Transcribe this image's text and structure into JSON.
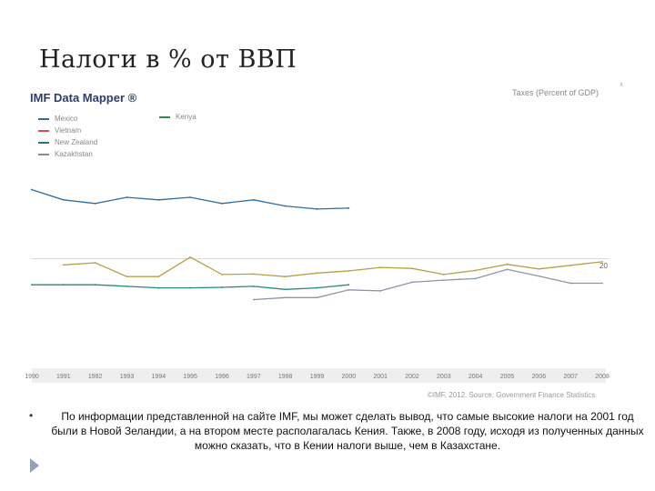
{
  "slide": {
    "title": "Налоги в % от ВВП",
    "bullet_text": "По информации представленной на сайте IMF, мы может сделать вывод, что самые высокие налоги на 2001 год были в Новой Зеландии, а на втором месте располагалась Кения. Также, в 2008 году, исходя из полученных данных можно сказать, что в Кении налоги выше, чем в Казахстане."
  },
  "chart_header": {
    "logo": "IMF Data Mapper ®",
    "title": "Taxes (Percent of GDP)",
    "source": "©IMF, 2012. Source: Government Finance Statistics",
    "y_marker_label": "20",
    "top_tick": "x"
  },
  "colors": {
    "mexico": "#2a6fa8",
    "vietnam": "#d9534f",
    "new_zealand": "#2f6f9f",
    "kazakhstan": "#7a8fa6",
    "kenya": "#2e8b57",
    "olive": "#b5a247",
    "gray_series": "#8a95a8",
    "teal_series": "#2a8a7a"
  },
  "chart_data": {
    "type": "line",
    "title": "Taxes (Percent of GDP)",
    "x": [
      "1990",
      "1991",
      "1992",
      "1993",
      "1994",
      "1995",
      "1996",
      "1997",
      "1998",
      "1999",
      "2000",
      "2001",
      "2002",
      "2003",
      "2004",
      "2005",
      "2006",
      "2007",
      "2008"
    ],
    "ylim": [
      0,
      40
    ],
    "legend": [
      "Mexico",
      "Vietnam",
      "New Zealand",
      "Kazakhstan",
      "Kenya"
    ],
    "series": [
      {
        "name": "New Zealand",
        "color": "#2f6f9f",
        "values": [
          33.5,
          31.5,
          30.8,
          32.0,
          31.5,
          32.0,
          30.8,
          31.5,
          30.3,
          29.7,
          29.9,
          null,
          null,
          null,
          null,
          null,
          null,
          null,
          null
        ]
      },
      {
        "name": "Kenya",
        "color": "#b5a247",
        "values": [
          null,
          18.8,
          19.2,
          16.5,
          16.5,
          20.3,
          16.9,
          17.0,
          16.5,
          17.2,
          17.6,
          18.3,
          18.1,
          16.9,
          17.7,
          18.9,
          18.0,
          18.7,
          19.4
        ]
      },
      {
        "name": "Kazakhstan",
        "color": "#8a95a8",
        "values": [
          null,
          null,
          null,
          null,
          null,
          null,
          null,
          12.0,
          12.4,
          12.4,
          13.9,
          13.7,
          15.4,
          15.8,
          16.1,
          17.9,
          16.6,
          15.2,
          15.2
        ]
      },
      {
        "name": "Mexico",
        "color": "#2a8a7a",
        "values": [
          14.9,
          14.9,
          14.9,
          14.6,
          14.3,
          14.3,
          14.4,
          14.6,
          14.0,
          14.3,
          14.9,
          null,
          null,
          null,
          null,
          null,
          null,
          null,
          null
        ]
      }
    ]
  }
}
